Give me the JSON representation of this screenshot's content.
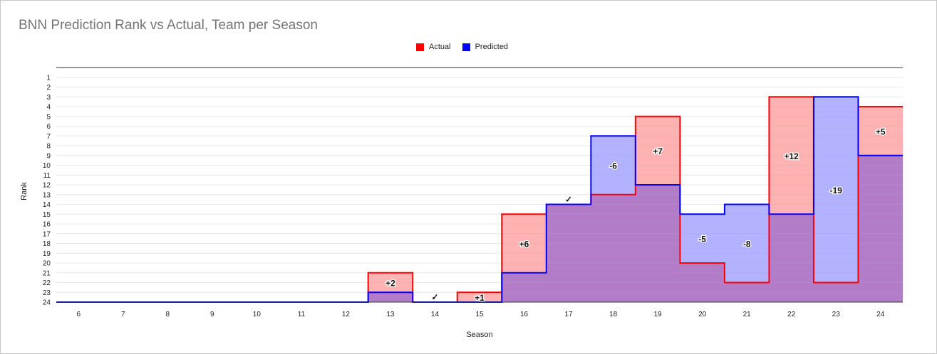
{
  "chart_data": {
    "type": "area",
    "title": "BNN Prediction Rank vs Actual, Team per Season",
    "xlabel": "Season",
    "ylabel": "Rank",
    "x": [
      6,
      7,
      8,
      9,
      10,
      11,
      12,
      13,
      14,
      15,
      16,
      17,
      18,
      19,
      20,
      21,
      22,
      23,
      24
    ],
    "ylim": [
      1,
      24
    ],
    "y_reversed": true,
    "y_ticks": [
      1,
      2,
      3,
      4,
      5,
      6,
      7,
      8,
      9,
      10,
      11,
      12,
      13,
      14,
      15,
      16,
      17,
      18,
      19,
      20,
      21,
      22,
      23,
      24
    ],
    "series": [
      {
        "name": "Actual",
        "color": "#ff0000",
        "values": [
          24,
          24,
          24,
          24,
          24,
          24,
          24,
          21,
          24,
          23,
          15,
          14,
          13,
          5,
          20,
          22,
          3,
          22,
          4
        ]
      },
      {
        "name": "Predicted",
        "color": "#0000ff",
        "values": [
          24,
          24,
          24,
          24,
          24,
          24,
          24,
          23,
          24,
          24,
          21,
          14,
          7,
          12,
          15,
          14,
          15,
          3,
          9
        ]
      }
    ],
    "difference_labels": [
      "",
      "",
      "",
      "",
      "",
      "",
      "",
      "+2",
      "✓",
      "+1",
      "+6",
      "✓",
      "-6",
      "+7",
      "-5",
      "-8",
      "+12",
      "-19",
      "+5"
    ],
    "legend_position": "top",
    "grid": true
  }
}
